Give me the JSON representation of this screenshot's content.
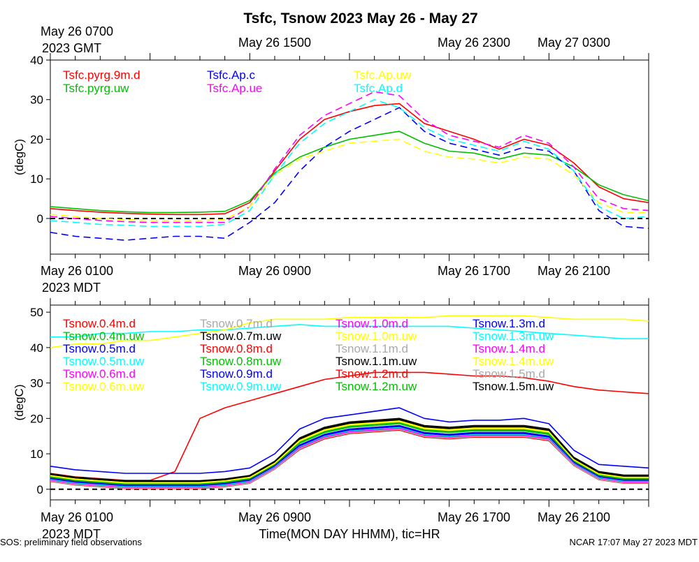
{
  "title": "Tsfc, Tsnow 2023 May 26 - May 27",
  "footer_left": "SOS: preliminary field observations",
  "footer_right": "NCAR 17:07 May 27 2023 MDT",
  "xaxis_title": "Time(MON DAY HHMM), tic=HR",
  "chart_data": [
    {
      "type": "line",
      "name": "top",
      "ylabel": "(degC)",
      "ylim": [
        -9,
        40
      ],
      "yticks": [
        "40",
        "30",
        "20",
        "10",
        "0"
      ],
      "top_labels": [
        {
          "line1": "May 26 0700",
          "line2": "2023 GMT"
        },
        {
          "line1": "May 26 1500",
          "line2": ""
        },
        {
          "line1": "May 26 2300",
          "line2": ""
        },
        {
          "line1": "May 27 0300",
          "line2": ""
        }
      ],
      "bottom_labels": [
        {
          "line1": "May 26 0100",
          "line2": "2023 MDT"
        },
        {
          "line1": "May 26 0900",
          "line2": ""
        },
        {
          "line1": "May 26 1700",
          "line2": ""
        },
        {
          "line1": "May 26 2100",
          "line2": ""
        }
      ],
      "x": [
        0,
        1,
        2,
        3,
        4,
        5,
        6,
        7,
        8,
        9,
        10,
        11,
        12,
        13,
        14,
        15,
        16,
        17,
        18,
        19,
        20,
        21,
        22,
        23,
        24
      ],
      "series": [
        {
          "name": "Tsfc.pyrg.9m.d",
          "color": "#ff0000",
          "dash": false,
          "values": [
            2.5,
            2.0,
            1.6,
            1.3,
            1.1,
            1.0,
            1.0,
            1.2,
            4.0,
            12.0,
            20.0,
            25.0,
            27.0,
            28.5,
            29.0,
            24.0,
            22.0,
            20.0,
            17.5,
            20.0,
            18.5,
            14.0,
            8.0,
            5.0,
            4.0
          ]
        },
        {
          "name": "Tsfc.pyrg.uw",
          "color": "#00c000",
          "dash": false,
          "values": [
            3.0,
            2.5,
            2.0,
            1.7,
            1.5,
            1.5,
            1.6,
            1.8,
            4.5,
            11.5,
            15.5,
            18.0,
            20.0,
            21.0,
            22.0,
            19.0,
            17.0,
            16.5,
            15.0,
            16.5,
            16.0,
            13.0,
            8.5,
            6.0,
            4.5
          ]
        },
        {
          "name": "Tsfc.Ap.c",
          "color": "#0000ff",
          "dash": true,
          "values": [
            -3.5,
            -4.5,
            -5.0,
            -5.5,
            -5.0,
            -4.5,
            -4.5,
            -5.0,
            -1.0,
            4.0,
            12.0,
            18.0,
            22.0,
            25.0,
            28.0,
            22.0,
            19.0,
            17.5,
            16.0,
            18.0,
            17.0,
            12.0,
            2.0,
            -2.0,
            -2.5
          ]
        },
        {
          "name": "Tsfc.Ap.ue",
          "color": "#ff00ff",
          "dash": true,
          "values": [
            0.5,
            0.0,
            -0.5,
            -0.8,
            -1.0,
            -1.0,
            -1.0,
            -1.0,
            3.0,
            12.5,
            21.0,
            26.0,
            29.0,
            32.0,
            31.0,
            25.0,
            21.0,
            19.5,
            18.0,
            21.0,
            19.0,
            13.0,
            5.0,
            2.5,
            2.0
          ]
        },
        {
          "name": "Tsfc.Ap.uw",
          "color": "#ffff00",
          "dash": true,
          "values": [
            1.0,
            0.5,
            0.0,
            -0.3,
            -0.5,
            -0.5,
            -0.5,
            -0.3,
            3.0,
            11.0,
            15.0,
            17.0,
            19.0,
            19.5,
            20.0,
            17.0,
            15.5,
            15.0,
            14.0,
            15.5,
            15.0,
            11.0,
            4.0,
            1.5,
            1.5
          ]
        },
        {
          "name": "Tsfc.Ap.d",
          "color": "#00ffff",
          "dash": true,
          "values": [
            -0.5,
            -1.0,
            -1.5,
            -1.7,
            -2.0,
            -2.0,
            -2.0,
            -1.5,
            2.0,
            11.0,
            19.0,
            24.0,
            27.0,
            30.0,
            28.0,
            23.0,
            20.0,
            18.5,
            17.0,
            19.5,
            17.5,
            12.0,
            3.0,
            0.0,
            0.5
          ]
        }
      ]
    },
    {
      "type": "line",
      "name": "bottom",
      "ylabel": "(degC)",
      "ylim": [
        -3,
        52
      ],
      "yticks": [
        "50",
        "40",
        "30",
        "20",
        "10",
        "0"
      ],
      "bottom_labels": [
        {
          "line1": "May 26 0100",
          "line2": "2023 MDT"
        },
        {
          "line1": "May 26 0900",
          "line2": ""
        },
        {
          "line1": "May 26 1700",
          "line2": ""
        },
        {
          "line1": "May 26 2100",
          "line2": ""
        }
      ],
      "x": [
        0,
        1,
        2,
        3,
        4,
        5,
        6,
        7,
        8,
        9,
        10,
        11,
        12,
        13,
        14,
        15,
        16,
        17,
        18,
        19,
        20,
        21,
        22,
        23,
        24
      ],
      "series": [
        {
          "name": "Tsnow.0.4m.d",
          "color": "#ff0000",
          "values": [
            4.5,
            3.5,
            3.0,
            2.5,
            2.5,
            5.0,
            20.0,
            23.0,
            25.0,
            27.0,
            29.0,
            31.0,
            32.0,
            33.0,
            33.0,
            33.0,
            32.5,
            32.0,
            32.0,
            31.5,
            30.5,
            29.0,
            28.0,
            27.5,
            27.0
          ]
        },
        {
          "name": "Tsnow.0.4m.uw",
          "color": "#00c000",
          "values": [
            3.5,
            2.5,
            2.0,
            1.5,
            1.5,
            1.5,
            1.5,
            2.0,
            3.0,
            7.0,
            13.0,
            16.0,
            17.5,
            18.5,
            19.0,
            17.0,
            16.5,
            16.5,
            16.5,
            16.5,
            15.5,
            8.0,
            4.0,
            3.0,
            3.0
          ]
        },
        {
          "name": "Tsnow.0.5m.d",
          "color": "#0000ff",
          "values": [
            6.5,
            5.5,
            5.0,
            4.5,
            4.5,
            4.5,
            4.5,
            5.0,
            6.0,
            10.0,
            17.0,
            20.0,
            21.0,
            22.0,
            23.0,
            20.0,
            19.0,
            19.5,
            19.5,
            20.0,
            18.5,
            11.0,
            7.0,
            6.5,
            6.0
          ]
        },
        {
          "name": "Tsnow.0.5m.uw",
          "color": "#00ffff",
          "values": [
            43.0,
            43.0,
            44.0,
            44.0,
            44.5,
            44.5,
            45.0,
            45.0,
            45.5,
            46.0,
            46.5,
            46.0,
            46.0,
            46.0,
            46.0,
            46.0,
            46.0,
            45.5,
            45.0,
            44.5,
            44.0,
            43.5,
            43.0,
            42.5,
            42.5
          ]
        },
        {
          "name": "Tsnow.0.6m.d",
          "color": "#ff00ff",
          "values": [
            3.0,
            2.0,
            1.5,
            1.0,
            1.0,
            1.0,
            1.0,
            1.5,
            2.5,
            6.5,
            12.0,
            15.0,
            16.5,
            17.0,
            17.5,
            15.5,
            15.0,
            15.5,
            15.5,
            15.5,
            14.5,
            7.5,
            3.5,
            2.5,
            2.5
          ]
        },
        {
          "name": "Tsnow.0.6m.uw",
          "color": "#ffff00",
          "values": [
            40.0,
            41.0,
            41.0,
            42.0,
            42.0,
            43.0,
            44.0,
            45.0,
            47.0,
            48.0,
            48.0,
            48.0,
            48.5,
            48.5,
            48.5,
            48.5,
            49.0,
            49.0,
            49.0,
            49.0,
            48.5,
            48.0,
            48.0,
            48.0,
            47.5
          ]
        },
        {
          "name": "Tsnow.0.7m.d",
          "color": "#aaaaaa",
          "values": [
            3.2,
            2.2,
            1.7,
            1.2,
            1.2,
            1.2,
            1.2,
            1.7,
            2.7,
            6.7,
            12.5,
            15.5,
            17.0,
            17.5,
            18.0,
            16.0,
            15.5,
            16.0,
            16.0,
            16.0,
            15.0,
            7.7,
            3.7,
            2.7,
            2.7
          ]
        },
        {
          "name": "Tsnow.0.7m.uw",
          "color": "#000000",
          "values": [
            4.0,
            3.0,
            2.5,
            2.0,
            2.0,
            2.0,
            2.0,
            2.5,
            3.5,
            7.5,
            14.0,
            17.0,
            18.5,
            19.0,
            19.5,
            17.5,
            17.0,
            17.5,
            17.5,
            17.5,
            16.5,
            8.5,
            4.5,
            3.5,
            3.5
          ]
        },
        {
          "name": "Tsnow.0.8m.d",
          "color": "#ff0000",
          "values": [
            3.7,
            2.7,
            2.2,
            1.7,
            1.7,
            1.7,
            1.7,
            2.2,
            3.2,
            7.2,
            13.5,
            16.5,
            18.0,
            18.5,
            19.0,
            17.0,
            16.5,
            17.0,
            17.0,
            17.0,
            16.0,
            8.2,
            4.2,
            3.2,
            3.2
          ]
        },
        {
          "name": "Tsnow.0.8m.uw",
          "color": "#00c000",
          "values": [
            3.4,
            2.4,
            1.9,
            1.4,
            1.4,
            1.4,
            1.4,
            1.9,
            2.9,
            6.9,
            13.0,
            16.0,
            17.5,
            18.0,
            18.5,
            16.5,
            16.0,
            16.5,
            16.5,
            16.5,
            15.5,
            7.9,
            3.9,
            2.9,
            2.9
          ]
        },
        {
          "name": "Tsnow.0.9m.d",
          "color": "#0000ff",
          "values": [
            3.1,
            2.1,
            1.6,
            1.1,
            1.1,
            1.1,
            1.1,
            1.6,
            2.6,
            6.6,
            12.5,
            15.5,
            17.0,
            17.5,
            18.0,
            16.0,
            15.5,
            16.0,
            16.0,
            16.0,
            15.0,
            7.6,
            3.6,
            2.6,
            2.6
          ]
        },
        {
          "name": "Tsnow.0.9m.uw",
          "color": "#00ffff",
          "values": [
            2.8,
            1.8,
            1.3,
            0.8,
            0.8,
            0.8,
            0.8,
            1.3,
            2.3,
            6.3,
            12.0,
            15.0,
            16.5,
            17.0,
            17.5,
            15.5,
            15.0,
            15.5,
            15.5,
            15.5,
            14.5,
            7.3,
            3.3,
            2.3,
            2.3
          ]
        },
        {
          "name": "Tsnow.1.0m.d",
          "color": "#ff00ff",
          "values": [
            2.6,
            1.6,
            1.1,
            0.6,
            0.6,
            0.6,
            0.6,
            1.1,
            2.1,
            6.1,
            11.8,
            14.8,
            16.3,
            16.8,
            17.3,
            15.3,
            14.8,
            15.3,
            15.3,
            15.3,
            14.3,
            7.1,
            3.1,
            2.1,
            2.1
          ]
        },
        {
          "name": "Tsnow.1.0m.uw",
          "color": "#ffff00",
          "values": [
            3.9,
            2.9,
            2.4,
            1.9,
            1.9,
            1.9,
            1.9,
            2.4,
            3.4,
            7.4,
            13.8,
            16.8,
            18.3,
            18.8,
            19.3,
            17.3,
            16.8,
            17.3,
            17.3,
            17.3,
            16.3,
            8.4,
            4.4,
            3.4,
            3.4
          ]
        },
        {
          "name": "Tsnow.1.1m.d",
          "color": "#aaaaaa",
          "values": [
            2.4,
            1.4,
            0.9,
            0.4,
            0.4,
            0.4,
            0.4,
            0.9,
            1.9,
            5.9,
            11.5,
            14.5,
            16.0,
            16.5,
            17.0,
            15.0,
            14.5,
            15.0,
            15.0,
            15.0,
            14.0,
            6.9,
            2.9,
            1.9,
            1.9
          ]
        },
        {
          "name": "Tsnow.1.1m.uw",
          "color": "#000000",
          "values": [
            4.2,
            3.2,
            2.7,
            2.2,
            2.2,
            2.2,
            2.2,
            2.7,
            3.7,
            7.7,
            14.2,
            17.2,
            18.7,
            19.2,
            19.7,
            17.7,
            17.2,
            17.7,
            17.7,
            17.7,
            16.7,
            8.7,
            4.7,
            3.7,
            3.7
          ]
        },
        {
          "name": "Tsnow.1.2m.d",
          "color": "#ff0000",
          "values": [
            2.2,
            1.2,
            0.7,
            0.2,
            0.2,
            0.2,
            0.2,
            0.7,
            1.7,
            5.7,
            11.2,
            14.2,
            15.7,
            16.2,
            16.7,
            14.7,
            14.2,
            14.7,
            14.7,
            14.7,
            13.7,
            6.7,
            2.7,
            1.7,
            1.7
          ]
        },
        {
          "name": "Tsnow.1.2m.uw",
          "color": "#00c000",
          "values": [
            3.6,
            2.6,
            2.1,
            1.6,
            1.6,
            1.6,
            1.6,
            2.1,
            3.1,
            7.1,
            13.3,
            16.3,
            17.8,
            18.3,
            18.8,
            16.8,
            16.3,
            16.8,
            16.8,
            16.8,
            15.8,
            8.1,
            4.1,
            3.1,
            3.1
          ]
        },
        {
          "name": "Tsnow.1.3m.d",
          "color": "#0000ff",
          "values": [
            2.9,
            1.9,
            1.4,
            0.9,
            0.9,
            0.9,
            0.9,
            1.4,
            2.4,
            6.4,
            12.2,
            15.2,
            16.7,
            17.2,
            17.7,
            15.7,
            15.2,
            15.7,
            15.7,
            15.7,
            14.7,
            7.4,
            3.4,
            2.4,
            2.4
          ]
        },
        {
          "name": "Tsnow.1.3m.uw",
          "color": "#00ffff",
          "values": [
            2.7,
            1.7,
            1.2,
            0.7,
            0.7,
            0.7,
            0.7,
            1.2,
            2.2,
            6.2,
            11.9,
            14.9,
            16.4,
            16.9,
            17.4,
            15.4,
            14.9,
            15.4,
            15.4,
            15.4,
            14.4,
            7.2,
            3.2,
            2.2,
            2.2
          ]
        },
        {
          "name": "Tsnow.1.4m.d",
          "color": "#ff00ff",
          "values": [
            2.5,
            1.5,
            1.0,
            0.5,
            0.5,
            0.5,
            0.5,
            1.0,
            2.0,
            6.0,
            11.7,
            14.7,
            16.2,
            16.7,
            17.2,
            15.2,
            14.7,
            15.2,
            15.2,
            15.2,
            14.2,
            7.0,
            3.0,
            2.0,
            2.0
          ]
        },
        {
          "name": "Tsnow.1.4m.uw",
          "color": "#ffff00",
          "values": [
            3.8,
            2.8,
            2.3,
            1.8,
            1.8,
            1.8,
            1.8,
            2.3,
            3.3,
            7.3,
            13.6,
            16.6,
            18.1,
            18.6,
            19.1,
            17.1,
            16.6,
            17.1,
            17.1,
            17.1,
            16.1,
            8.3,
            4.3,
            3.3,
            3.3
          ]
        },
        {
          "name": "Tsnow.1.5m.d",
          "color": "#aaaaaa",
          "values": [
            2.3,
            1.3,
            0.8,
            0.3,
            0.3,
            0.3,
            0.3,
            0.8,
            1.8,
            5.8,
            11.4,
            14.4,
            15.9,
            16.4,
            16.9,
            14.9,
            14.4,
            14.9,
            14.9,
            14.9,
            13.9,
            6.8,
            2.8,
            1.8,
            1.8
          ]
        },
        {
          "name": "Tsnow.1.5m.uw",
          "color": "#000000",
          "values": [
            4.4,
            3.4,
            2.9,
            2.4,
            2.4,
            2.4,
            2.4,
            2.9,
            3.9,
            7.9,
            14.5,
            17.5,
            19.0,
            19.5,
            20.0,
            18.0,
            17.5,
            18.0,
            18.0,
            18.0,
            17.0,
            9.0,
            5.0,
            4.0,
            4.0
          ]
        }
      ]
    }
  ]
}
